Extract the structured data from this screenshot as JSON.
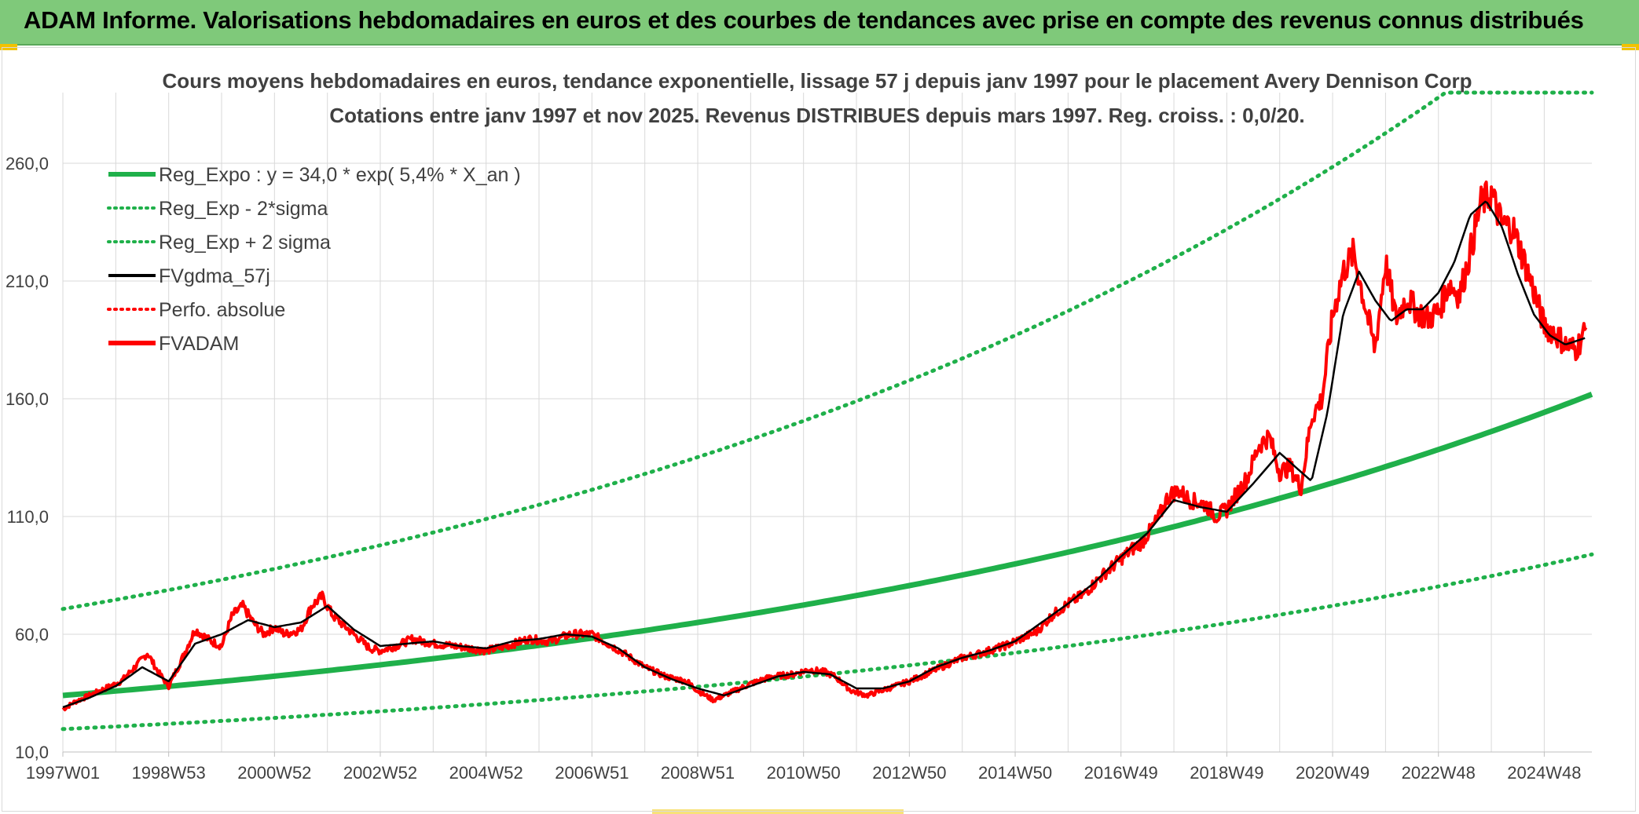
{
  "banner": {
    "title": "ADAM Informe. Valorisations hebdomadaires en euros et des courbes de tendances avec prise en compte des revenus connus distribués"
  },
  "colors": {
    "banner_bg": "#7fc97a",
    "reg_green": "#1fb04a",
    "smooth_black": "#000000",
    "price_red": "#ff0000",
    "grid": "#d9d9d9",
    "text": "#404040"
  },
  "chart_data": {
    "type": "line",
    "title": "Cours moyens hebdomadaires en euros, tendance exponentielle, lissage 57 j depuis janv 1997 pour le placement Avery Dennison Corp",
    "subtitle": "Cotations entre janv 1997 et nov 2025. Revenus DISTRIBUES depuis mars 1997. Reg. croiss. : 0,0/20.",
    "xlabel": "",
    "ylabel": "",
    "x_range": [
      1997.0,
      2025.9
    ],
    "ylim": [
      10,
      290
    ],
    "y_ticks": [
      "10,0",
      "60,0",
      "110,0",
      "160,0",
      "210,0",
      "260,0"
    ],
    "y_tick_values": [
      10,
      60,
      110,
      160,
      210,
      260
    ],
    "x_tick_labels": [
      "1997W01",
      "1998W53",
      "2000W52",
      "2002W52",
      "2004W52",
      "2006W51",
      "2008W51",
      "2010W50",
      "2012W50",
      "2014W50",
      "2016W49",
      "2018W49",
      "2020W49",
      "2022W48",
      "2024W48"
    ],
    "x_tick_values": [
      1997.0,
      1999.0,
      2001.0,
      2003.0,
      2005.0,
      2007.0,
      2009.0,
      2011.0,
      2013.0,
      2015.0,
      2017.0,
      2019.0,
      2021.0,
      2023.0,
      2025.0
    ],
    "grid": true,
    "legend_position": "top-left",
    "legend": [
      {
        "key": "reg",
        "label": "Reg_Expo : y = 34,0 * exp( 5,4% *  X_an )",
        "style": "solid-thick",
        "color": "#1fb04a"
      },
      {
        "key": "lower",
        "label": "Reg_Exp - 2*sigma",
        "style": "dotted",
        "color": "#1fb04a"
      },
      {
        "key": "upper",
        "label": "Reg_Exp + 2 sigma",
        "style": "dotted",
        "color": "#1fb04a"
      },
      {
        "key": "smooth",
        "label": "FVgdma_57j",
        "style": "solid",
        "color": "#000000"
      },
      {
        "key": "perf",
        "label": "Perfo. absolue",
        "style": "dotted",
        "color": "#ff0000"
      },
      {
        "key": "price",
        "label": "FVADAM",
        "style": "solid-thick",
        "color": "#ff0000"
      }
    ],
    "regression": {
      "a": 34.0,
      "rate": 0.054,
      "x0": 1997.0
    },
    "sigma_bands": {
      "upper_factor": 2.08,
      "lower_factor": 0.58,
      "upper_cap": 290
    },
    "series": [
      {
        "name": "FVADAM",
        "x": [
          1997.0,
          1997.2,
          1997.5,
          1997.8,
          1998.1,
          1998.4,
          1998.6,
          1998.8,
          1999.0,
          1999.2,
          1999.5,
          1999.8,
          2000.0,
          2000.2,
          2000.4,
          2000.6,
          2000.8,
          2001.0,
          2001.2,
          2001.5,
          2001.7,
          2001.9,
          2002.1,
          2002.4,
          2002.6,
          2002.8,
          2003.0,
          2003.3,
          2003.6,
          2004.0,
          2004.4,
          2004.7,
          2005.0,
          2005.4,
          2005.8,
          2006.2,
          2006.6,
          2007.0,
          2007.3,
          2007.6,
          2008.0,
          2008.4,
          2008.8,
          2009.0,
          2009.3,
          2009.6,
          2010.0,
          2010.4,
          2010.8,
          2011.1,
          2011.4,
          2011.6,
          2011.9,
          2012.2,
          2012.6,
          2013.0,
          2013.4,
          2013.8,
          2014.0,
          2014.2,
          2014.5,
          2014.8,
          2015.1,
          2015.4,
          2015.7,
          2016.0,
          2016.3,
          2016.6,
          2016.9,
          2017.2,
          2017.4,
          2017.7,
          2017.9,
          2018.1,
          2018.3,
          2018.6,
          2018.8,
          2019.0,
          2019.2,
          2019.4,
          2019.6,
          2019.8,
          2020.0,
          2020.2,
          2020.4,
          2020.6,
          2020.8,
          2021.0,
          2021.2,
          2021.4,
          2021.6,
          2021.8,
          2022.0,
          2022.2,
          2022.4,
          2022.6,
          2022.8,
          2023.0,
          2023.2,
          2023.4,
          2023.6,
          2023.8,
          2024.0,
          2024.2,
          2024.4,
          2024.6,
          2024.8,
          2025.0,
          2025.2,
          2025.4,
          2025.6,
          2025.8
        ],
        "values": [
          28,
          31,
          34,
          37,
          40,
          47,
          52,
          44,
          38,
          47,
          62,
          57,
          55,
          68,
          72,
          65,
          60,
          63,
          60,
          62,
          72,
          76,
          68,
          62,
          58,
          54,
          53,
          55,
          58,
          56,
          55,
          54,
          53,
          55,
          58,
          57,
          60,
          60,
          56,
          52,
          46,
          42,
          40,
          36,
          32,
          35,
          39,
          42,
          43,
          45,
          44,
          42,
          36,
          34,
          37,
          40,
          44,
          48,
          50,
          51,
          53,
          55,
          58,
          61,
          68,
          73,
          77,
          84,
          90,
          96,
          99,
          109,
          119,
          121,
          117,
          115,
          110,
          113,
          120,
          127,
          140,
          144,
          129,
          131,
          122,
          152,
          160,
          195,
          214,
          222,
          201,
          181,
          218,
          194,
          203,
          197,
          194,
          197,
          209,
          204,
          222,
          243,
          247,
          234,
          233,
          220,
          206,
          191,
          188,
          183,
          181,
          190
        ]
      },
      {
        "name": "FVgdma_57j",
        "x": [
          1997.0,
          1997.5,
          1998.0,
          1998.5,
          1999.0,
          1999.5,
          2000.0,
          2000.5,
          2001.0,
          2001.5,
          2002.0,
          2002.5,
          2003.0,
          2003.5,
          2004.0,
          2004.5,
          2005.0,
          2005.5,
          2006.0,
          2006.5,
          2007.0,
          2007.5,
          2008.0,
          2008.5,
          2009.0,
          2009.5,
          2010.0,
          2010.5,
          2011.0,
          2011.5,
          2012.0,
          2012.5,
          2013.0,
          2013.5,
          2014.0,
          2014.5,
          2015.0,
          2015.5,
          2016.0,
          2016.5,
          2017.0,
          2017.5,
          2018.0,
          2018.5,
          2019.0,
          2019.5,
          2020.0,
          2020.3,
          2020.6,
          2020.9,
          2021.2,
          2021.5,
          2021.8,
          2022.1,
          2022.4,
          2022.7,
          2023.0,
          2023.3,
          2023.6,
          2023.9,
          2024.2,
          2024.5,
          2024.8,
          2025.1,
          2025.4,
          2025.8
        ],
        "values": [
          29,
          33,
          38,
          46,
          40,
          56,
          60,
          66,
          63,
          65,
          72,
          62,
          55,
          56,
          57,
          55,
          54,
          57,
          58,
          60,
          59,
          54,
          46,
          41,
          37,
          34,
          38,
          42,
          44,
          43,
          37,
          37,
          40,
          46,
          50,
          53,
          57,
          65,
          73,
          82,
          93,
          103,
          117,
          114,
          112,
          124,
          137,
          131,
          125,
          154,
          196,
          214,
          202,
          193,
          198,
          198,
          205,
          218,
          238,
          244,
          233,
          213,
          196,
          187,
          183,
          186
        ]
      }
    ]
  }
}
